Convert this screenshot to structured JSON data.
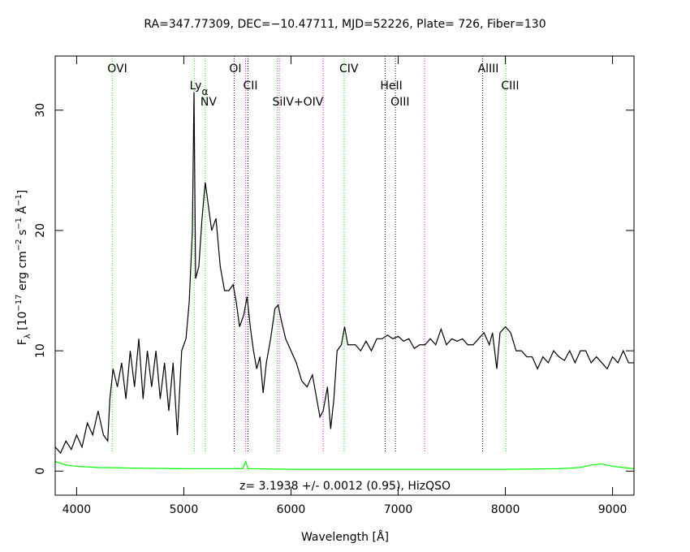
{
  "chart_data": {
    "type": "line",
    "title": "RA=347.77309, DEC=−10.47711, MJD=52226, Plate= 726, Fiber=130",
    "xlabel": "Wavelength [Å]",
    "ylabel_parts": [
      {
        "text": "F"
      },
      {
        "text": "λ",
        "shift": "sub"
      },
      {
        "text": " [10"
      },
      {
        "text": "−17",
        "shift": "super"
      },
      {
        "text": " erg cm"
      },
      {
        "text": "−2",
        "shift": "super"
      },
      {
        "text": " s"
      },
      {
        "text": "−1",
        "shift": "super"
      },
      {
        "text": " Å"
      },
      {
        "text": "−1",
        "shift": "super"
      },
      {
        "text": "]"
      }
    ],
    "annotation": "z= 3.1938 +/- 0.0012 (0.95), HizQSO",
    "xlim": [
      3800,
      9200
    ],
    "ylim": [
      -2,
      34.5
    ],
    "xticks": [
      4000,
      5000,
      6000,
      7000,
      8000,
      9000
    ],
    "yticks": [
      0,
      10,
      20,
      30
    ],
    "series": [
      {
        "color": "#000000",
        "x": [
          3800,
          3850,
          3900,
          3950,
          4000,
          4050,
          4100,
          4150,
          4200,
          4250,
          4290,
          4310,
          4340,
          4380,
          4420,
          4460,
          4500,
          4540,
          4580,
          4620,
          4660,
          4700,
          4740,
          4780,
          4820,
          4860,
          4900,
          4940,
          4980,
          5020,
          5050,
          5080,
          5095,
          5110,
          5140,
          5170,
          5200,
          5230,
          5260,
          5300,
          5340,
          5380,
          5420,
          5460,
          5490,
          5520,
          5560,
          5590,
          5620,
          5650,
          5680,
          5710,
          5740,
          5770,
          5810,
          5850,
          5880,
          5910,
          5950,
          6000,
          6050,
          6100,
          6150,
          6200,
          6240,
          6270,
          6300,
          6340,
          6370,
          6400,
          6430,
          6470,
          6500,
          6530,
          6600,
          6650,
          6700,
          6750,
          6800,
          6850,
          6900,
          6950,
          7000,
          7050,
          7100,
          7150,
          7200,
          7250,
          7300,
          7350,
          7400,
          7450,
          7500,
          7550,
          7600,
          7650,
          7700,
          7750,
          7800,
          7850,
          7880,
          7920,
          7950,
          8000,
          8050,
          8100,
          8150,
          8200,
          8250,
          8300,
          8350,
          8400,
          8450,
          8500,
          8550,
          8600,
          8650,
          8700,
          8750,
          8800,
          8850,
          8900,
          8950,
          9000,
          9050,
          9100,
          9150,
          9200
        ],
        "values": [
          2,
          1.5,
          2.5,
          1.8,
          3,
          2,
          4,
          3,
          5,
          3,
          2.5,
          6,
          8.5,
          7,
          9,
          6,
          10,
          7,
          11,
          6,
          10,
          7,
          10,
          6,
          9,
          5,
          9,
          3,
          10,
          11,
          14,
          20,
          31.5,
          16,
          17,
          21,
          24,
          22,
          20,
          21,
          17,
          15,
          15,
          15.5,
          14,
          12,
          13,
          14.5,
          12,
          10,
          8.5,
          9.5,
          6.5,
          9,
          11,
          13.5,
          13.8,
          12.5,
          11,
          10,
          9,
          7.5,
          7,
          8,
          6,
          4.5,
          5,
          7,
          3.5,
          6,
          10,
          10.5,
          12,
          10.5,
          10.5,
          10,
          10.8,
          10,
          11,
          11,
          11.3,
          11,
          11.2,
          10.8,
          11,
          10.2,
          10.5,
          10.5,
          11,
          10.5,
          11.8,
          10.5,
          11,
          10.8,
          11,
          10.5,
          10.5,
          11,
          11.5,
          10.5,
          11.5,
          8.5,
          11.5,
          12,
          11.5,
          10,
          10,
          9.5,
          9.5,
          8.5,
          9.5,
          9,
          10,
          9.5,
          9.2,
          10,
          9,
          10,
          10,
          9,
          9.5,
          9,
          8.5,
          9.5,
          9,
          10,
          9,
          9
        ]
      },
      {
        "color": "#00ff00",
        "x": [
          3800,
          3900,
          4000,
          4200,
          4500,
          5000,
          5550,
          5577,
          5600,
          6000,
          7000,
          8000,
          8500,
          8700,
          8800,
          8900,
          9000,
          9200
        ],
        "values": [
          0.8,
          0.5,
          0.4,
          0.3,
          0.25,
          0.2,
          0.2,
          0.8,
          0.2,
          0.15,
          0.15,
          0.15,
          0.2,
          0.3,
          0.5,
          0.6,
          0.4,
          0.2
        ]
      }
    ],
    "lines": [
      {
        "label": "OVI",
        "x": 4332,
        "color": "#00ff00",
        "row": 0
      },
      {
        "label": "Ly",
        "sub": "α",
        "x": 5100,
        "color": "#00ff00",
        "row": 1
      },
      {
        "label": "NV",
        "x": 5200,
        "color": "#00ff00",
        "row": 2
      },
      {
        "label": "OI",
        "x": 5469,
        "color": "#000000",
        "row": 0
      },
      {
        "label": "CII",
        "x": 5599,
        "color": "#000000",
        "row": 1
      },
      {
        "label": "SiIV+OIV",
        "x": 5871,
        "color": "#00ff00",
        "row": 2
      },
      {
        "label": "CIV",
        "x": 6496,
        "color": "#00ff00",
        "row": 0
      },
      {
        "label": "HeII",
        "x": 6878,
        "color": "#000000",
        "row": 1
      },
      {
        "label": "OIII",
        "x": 6974,
        "color": "#000000",
        "row": 2
      },
      {
        "label": "AlIII",
        "x": 7788,
        "color": "#000000",
        "row": 0
      },
      {
        "label": "CIII",
        "x": 8006,
        "color": "#00ff00",
        "row": 1
      }
    ],
    "sky_lines": {
      "color": "#ff00ff",
      "x": [
        5577,
        5890,
        6300,
        7246
      ]
    }
  }
}
